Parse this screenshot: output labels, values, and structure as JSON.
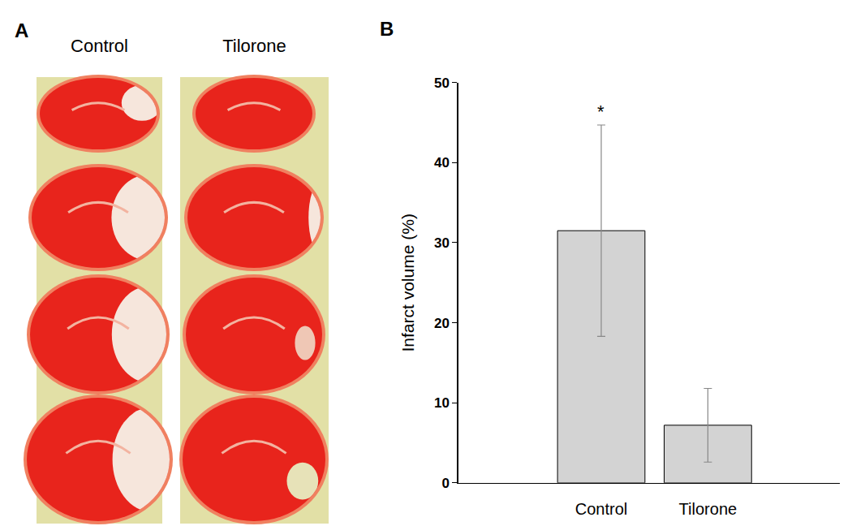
{
  "panel_a": {
    "label": "A",
    "columns": [
      "Control",
      "Tilorone"
    ]
  },
  "chart_data": {
    "type": "bar",
    "panel_label": "B",
    "y_label": "Infarct volume (%)",
    "categories": [
      "Control",
      "Tilorone"
    ],
    "values": [
      31.5,
      7.2
    ],
    "errors": [
      13.2,
      4.6
    ],
    "color": "#d3d3d3",
    "ylim": [
      0,
      50
    ],
    "yticks": [
      0,
      10,
      20,
      30,
      40,
      50
    ],
    "grid": false,
    "annotations": [
      {
        "text": "*",
        "category": "Control"
      }
    ]
  }
}
